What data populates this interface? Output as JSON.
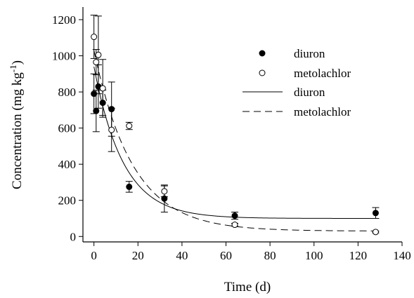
{
  "chart_data": {
    "type": "scatter",
    "xlabel": "Time (d)",
    "ylabel_main": "Concentration (mg kg",
    "ylabel_sup": "-1",
    "ylabel_close": ")",
    "xlim": [
      -5,
      140
    ],
    "ylim": [
      -30,
      1270
    ],
    "xticks": [
      0,
      20,
      40,
      60,
      80,
      100,
      120,
      140
    ],
    "yticks": [
      0,
      200,
      400,
      600,
      800,
      1000,
      1200
    ],
    "grid": false,
    "legend_position": "top-right",
    "series": [
      {
        "name": "diuron",
        "marker": "filled-circle",
        "color": "#000000",
        "points": [
          {
            "x": 0,
            "y": 790,
            "err": 110
          },
          {
            "x": 1,
            "y": 695,
            "err": 115
          },
          {
            "x": 2,
            "y": 830,
            "err": 120
          },
          {
            "x": 4,
            "y": 740,
            "err": 70
          },
          {
            "x": 8,
            "y": 705,
            "err": 150
          },
          {
            "x": 16,
            "y": 275,
            "err": 30
          },
          {
            "x": 32,
            "y": 210,
            "err": 75
          },
          {
            "x": 64,
            "y": 115,
            "err": 20
          },
          {
            "x": 128,
            "y": 130,
            "err": 30
          }
        ]
      },
      {
        "name": "metolachlor",
        "marker": "open-circle",
        "color": "#000000",
        "points": [
          {
            "x": 0,
            "y": 1105,
            "err": 120
          },
          {
            "x": 1,
            "y": 965,
            "err": 70
          },
          {
            "x": 2,
            "y": 1005,
            "err": 215
          },
          {
            "x": 4,
            "y": 820,
            "err": 160
          },
          {
            "x": 8,
            "y": 590,
            "err": 120
          },
          {
            "x": 16,
            "y": 612,
            "err": 20
          },
          {
            "x": 32,
            "y": 250,
            "err": 30
          },
          {
            "x": 64,
            "y": 65,
            "err": 8
          },
          {
            "x": 128,
            "y": 25,
            "err": 5
          }
        ]
      }
    ],
    "fits": [
      {
        "name": "diuron",
        "style": "solid",
        "c0": 100,
        "a": 840,
        "k": 0.075
      },
      {
        "name": "metolachlor",
        "style": "dashed",
        "c0": 30,
        "a": 1000,
        "k": 0.057
      }
    ],
    "legend": [
      "diuron",
      "metolachlor",
      "diuron",
      "metolachlor"
    ]
  }
}
